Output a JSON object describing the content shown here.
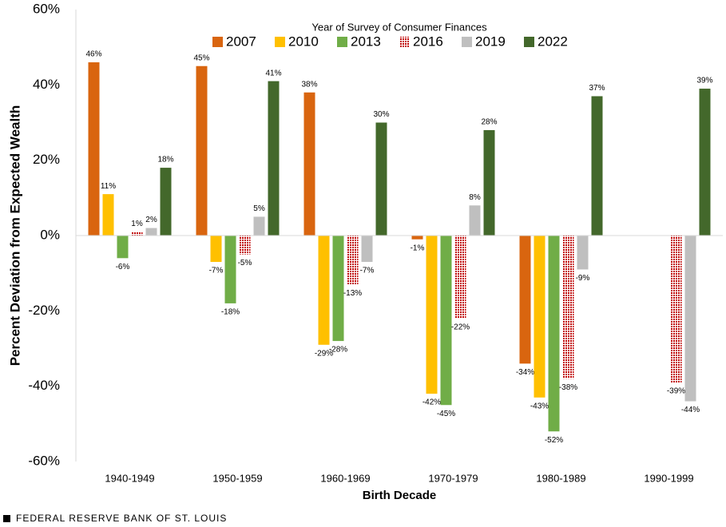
{
  "chart_data": {
    "type": "bar",
    "y_label": "Percent Deviation from Expected Wealth",
    "x_label": "Birth Decade",
    "legend_title": "Year of Survey of Consumer Finances",
    "legend_position": "top",
    "source": "FEDERAL RESERVE BANK OF ST. LOUIS",
    "categories": [
      "1940-1949",
      "1950-1959",
      "1960-1969",
      "1970-1979",
      "1980-1989",
      "1990-1999"
    ],
    "series": [
      {
        "name": "2007",
        "color": "#d9650f",
        "values": [
          46,
          45,
          38,
          -1,
          -34,
          null
        ],
        "value_labels": [
          "46%",
          "45%",
          "38%",
          "-1%",
          "-34%",
          null
        ]
      },
      {
        "name": "2010",
        "color": "#ffc000",
        "values": [
          11,
          -7,
          -29,
          -42,
          -43,
          null
        ],
        "value_labels": [
          "11%",
          "-7%",
          "-29%",
          "-42%",
          "-43%",
          null
        ]
      },
      {
        "name": "2013",
        "color": "#70ad47",
        "values": [
          -6,
          -18,
          -28,
          -45,
          -52,
          null
        ],
        "value_labels": [
          "-6%",
          "-18%",
          "-28%",
          "-45%",
          "-52%",
          null
        ]
      },
      {
        "name": "2016",
        "color": "#c00000",
        "pattern": "checker",
        "values": [
          1,
          -5,
          -13,
          -22,
          -38,
          -39
        ],
        "value_labels": [
          "1%",
          "-5%",
          "-13%",
          "-22%",
          "-38%",
          "-39%"
        ]
      },
      {
        "name": "2019",
        "color": "#bfbfbf",
        "values": [
          2,
          5,
          -7,
          8,
          -9,
          -44
        ],
        "value_labels": [
          "2%",
          "5%",
          "-7%",
          "8%",
          "-9%",
          "-44%"
        ]
      },
      {
        "name": "2022",
        "color": "#43682b",
        "values": [
          18,
          41,
          30,
          28,
          37,
          39
        ],
        "value_labels": [
          "18%",
          "41%",
          "30%",
          "28%",
          "37%",
          "39%"
        ]
      }
    ],
    "ylim": [
      -60,
      60
    ],
    "yticks": [
      {
        "value": -60,
        "label": "-60%"
      },
      {
        "value": -40,
        "label": "-40%"
      },
      {
        "value": -20,
        "label": "-20%"
      },
      {
        "value": 0,
        "label": "0%"
      },
      {
        "value": 20,
        "label": "20%"
      },
      {
        "value": 40,
        "label": "40%"
      },
      {
        "value": 60,
        "label": "60%"
      }
    ],
    "grid": false
  }
}
